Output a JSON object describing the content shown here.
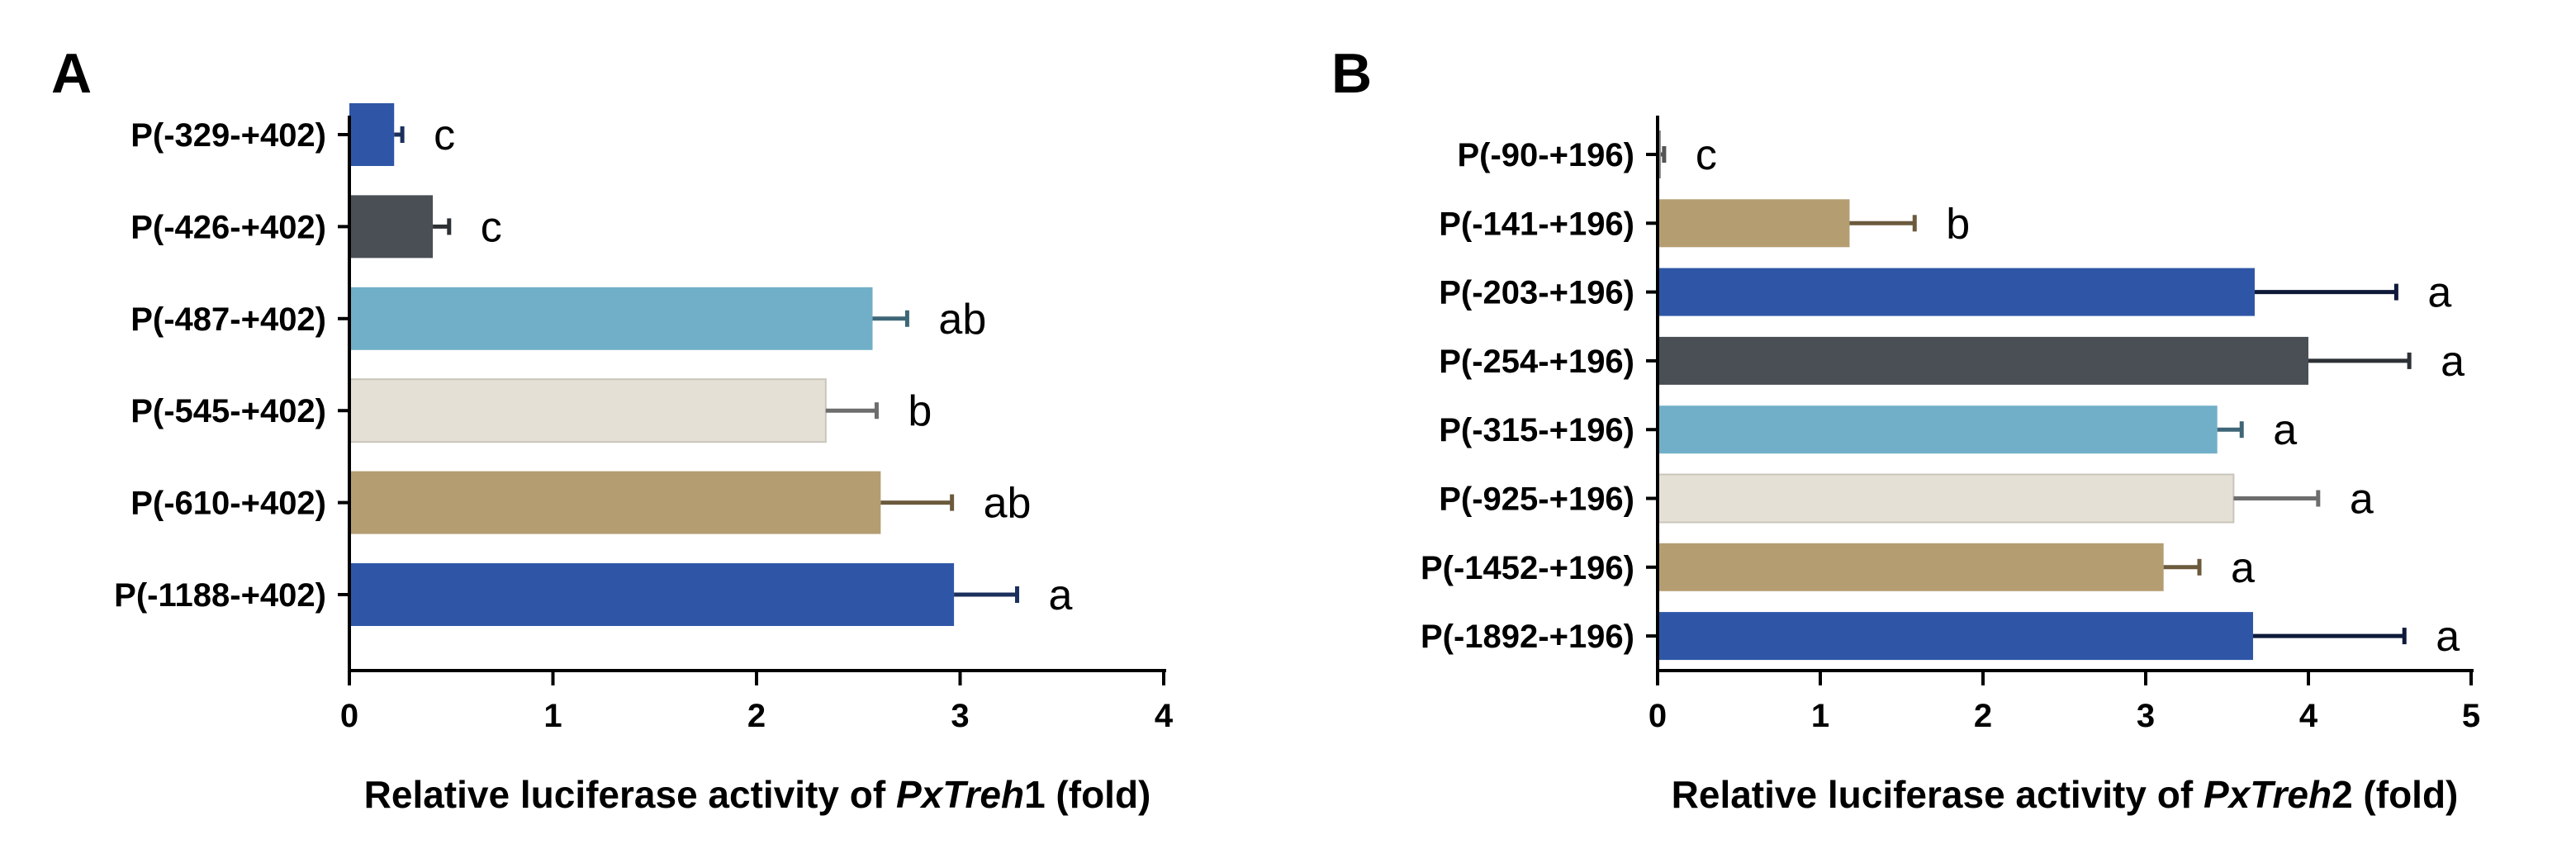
{
  "chart_data": [
    {
      "type": "bar",
      "orientation": "horizontal",
      "panel": "A",
      "categories": [
        "P(-329-+402)",
        "P(-426-+402)",
        "P(-487-+402)",
        "P(-545-+402)",
        "P(-610-+402)",
        "P(-1188-+402)"
      ],
      "values": [
        0.22,
        0.41,
        2.57,
        2.34,
        2.61,
        2.97
      ],
      "errors": [
        0.04,
        0.08,
        0.17,
        0.25,
        0.35,
        0.31
      ],
      "significance": [
        "c",
        "c",
        "ab",
        "b",
        "ab",
        "a"
      ],
      "colors": [
        "#2f56a6",
        "#4a4f55",
        "#71afc8",
        "#e4e0d6",
        "#b59d72",
        "#2f56a6"
      ],
      "error_colors": [
        "#1b2f5c",
        "#2d3035",
        "#3f6677",
        "#6d6d6d",
        "#6b5a3c",
        "#1b2f5c"
      ],
      "xlabel_prefix": "Relative luciferase activity of ",
      "xlabel_gene": "PxTreh",
      "xlabel_suffix": "1 (fold)",
      "xlim": [
        0,
        4
      ],
      "xticks": [
        "0",
        "1",
        "2",
        "3",
        "4"
      ]
    },
    {
      "type": "bar",
      "orientation": "horizontal",
      "panel": "B",
      "categories": [
        "P(-90-+196)",
        "P(-141-+196)",
        "P(-203-+196)",
        "P(-254-+196)",
        "P(-315-+196)",
        "P(-925-+196)",
        "P(-1452-+196)",
        "P(-1892-+196)"
      ],
      "values": [
        0.02,
        1.18,
        3.67,
        4.0,
        3.44,
        3.54,
        3.11,
        3.66
      ],
      "errors": [
        0.02,
        0.4,
        0.87,
        0.62,
        0.15,
        0.52,
        0.22,
        0.93
      ],
      "significance": [
        "c",
        "b",
        "a",
        "a",
        "a",
        "a",
        "a",
        "a"
      ],
      "colors": [
        "#8a8a8a",
        "#b59d72",
        "#2f56a6",
        "#4a4f55",
        "#71afc8",
        "#e4e0d6",
        "#b59d72",
        "#2f56a6"
      ],
      "error_colors": [
        "#555555",
        "#6b5a3c",
        "#0f1a3a",
        "#2d3035",
        "#3f6677",
        "#6d6d6d",
        "#6b5a3c",
        "#0f1a3a"
      ],
      "xlabel_prefix": "Relative luciferase activity of ",
      "xlabel_gene": "PxTreh",
      "xlabel_suffix": "2 (fold)",
      "xlim": [
        0,
        5
      ],
      "xticks": [
        "0",
        "1",
        "2",
        "3",
        "4",
        "5"
      ]
    }
  ]
}
